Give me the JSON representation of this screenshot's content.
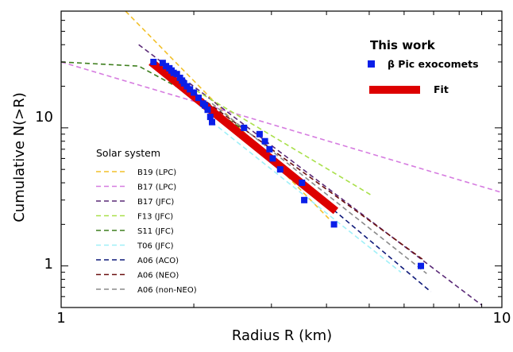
{
  "chart_data": {
    "type": "scatter",
    "xlabel": "Radius R (km)",
    "ylabel": "Cumulative N(>R)",
    "xscale": "log",
    "yscale": "log",
    "xlim": [
      1,
      10
    ],
    "ylim": [
      0.5,
      70
    ],
    "x_tick_labels": [
      {
        "value": 1,
        "label": "1"
      },
      {
        "value": 10,
        "label": "10"
      }
    ],
    "y_tick_labels": [
      {
        "value": 1,
        "label": "1"
      },
      {
        "value": 10,
        "label": "10"
      }
    ],
    "legend": {
      "this_work_title": "This work",
      "solar_title": "Solar system",
      "placement_this_work": "top-right",
      "placement_solar": "lower-left"
    },
    "points": {
      "name": "β Pic exocomets",
      "color": "#0a1fe8",
      "x": [
        1.62,
        1.7,
        1.73,
        1.76,
        1.78,
        1.8,
        1.83,
        1.86,
        1.88,
        1.9,
        1.93,
        1.96,
        2.0,
        2.05,
        2.1,
        2.12,
        2.15,
        2.18,
        2.2,
        2.6,
        2.82,
        2.9,
        2.97,
        3.02,
        3.14,
        3.52,
        3.56,
        4.16,
        6.55
      ],
      "y": [
        30,
        29.5,
        28,
        27,
        26,
        25,
        24.5,
        23,
        22,
        21,
        20,
        19,
        18,
        16.5,
        15,
        14.5,
        13.5,
        12,
        11,
        10,
        9,
        8,
        7,
        6,
        5,
        4,
        3,
        2,
        1
      ]
    },
    "fit": {
      "name": "Fit",
      "color": "#dd0000",
      "x": [
        1.6,
        4.2
      ],
      "y": [
        30,
        2.5
      ]
    },
    "series": [
      {
        "name": "B19 (LPC)",
        "color": "#f2c02a",
        "x": [
          1.4,
          4.05
        ],
        "y": [
          70,
          2.2
        ]
      },
      {
        "name": "B17 (LPC)",
        "color": "#d67ce0",
        "x": [
          1.0,
          10.0
        ],
        "y": [
          30,
          3.4
        ]
      },
      {
        "name": "B17 (JFC)",
        "color": "#5a2a77",
        "x": [
          1.5,
          9.0
        ],
        "y": [
          40,
          0.52
        ]
      },
      {
        "name": "F13 (JFC)",
        "color": "#a9e04a",
        "x": [
          1.95,
          5.1
        ],
        "y": [
          20,
          3.2
        ]
      },
      {
        "name": "S11 (JFC)",
        "color": "#3f7f1f",
        "x": [
          1.0,
          1.5,
          2.0,
          2.55
        ],
        "y": [
          30,
          28,
          17,
          10
        ]
      },
      {
        "name": "T06 (JFC)",
        "color": "#9ff0f8",
        "x": [
          2.2,
          5.9
        ],
        "y": [
          11,
          0.9
        ]
      },
      {
        "name": "A06 (ACO)",
        "color": "#0f1a7a",
        "x": [
          2.2,
          6.9
        ],
        "y": [
          14,
          0.65
        ]
      },
      {
        "name": "A06 (NEO)",
        "color": "#6b1010",
        "x": [
          2.0,
          6.65
        ],
        "y": [
          18,
          1.1
        ]
      },
      {
        "name": "A06 (non-NEO)",
        "color": "#8a8a8a",
        "x": [
          2.2,
          6.75
        ],
        "y": [
          15,
          0.88
        ]
      }
    ]
  }
}
